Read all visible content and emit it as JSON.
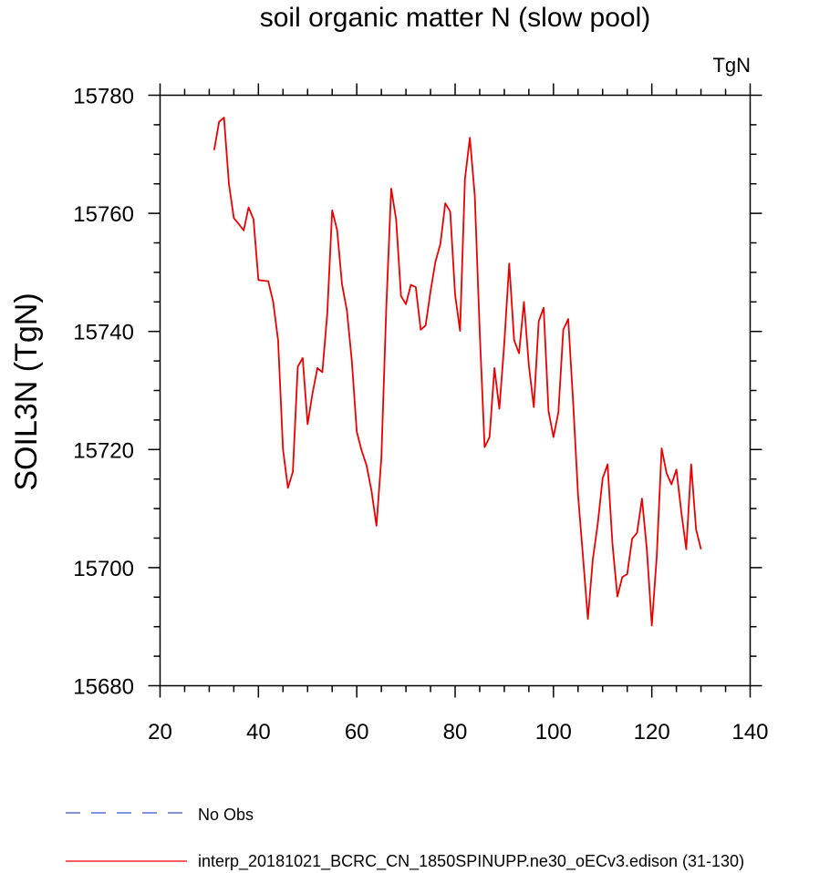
{
  "chart_data": {
    "type": "line",
    "title": "soil organic matter N (slow pool)",
    "units": "TgN",
    "ylabel": "SOIL3N  (TgN)",
    "xlabel": "",
    "xlim": [
      20,
      140
    ],
    "ylim": [
      15680,
      15780
    ],
    "xticks": [
      "20",
      "40",
      "60",
      "80",
      "100",
      "120",
      "140"
    ],
    "yticks": [
      "15680",
      "15700",
      "15720",
      "15740",
      "15760",
      "15780"
    ],
    "legend_position": "bottom-left",
    "series": [
      {
        "name": "No Obs",
        "color": "#3355cc",
        "style": "dashed",
        "x": [],
        "values": []
      },
      {
        "name": "interp_20181021_BCRC_CN_1850SPINUPP.ne30_oECv3.edison (31-130)",
        "color": "#ee0000",
        "style": "solid",
        "x": [
          31,
          32,
          33,
          34,
          35,
          36,
          37,
          38,
          39,
          40,
          41,
          42,
          43,
          44,
          45,
          46,
          47,
          48,
          49,
          50,
          51,
          52,
          53,
          54,
          55,
          56,
          57,
          58,
          59,
          60,
          61,
          62,
          63,
          64,
          65,
          66,
          67,
          68,
          69,
          70,
          71,
          72,
          73,
          74,
          75,
          76,
          77,
          78,
          79,
          80,
          81,
          82,
          83,
          84,
          85,
          86,
          87,
          88,
          89,
          90,
          91,
          92,
          93,
          94,
          95,
          96,
          97,
          98,
          99,
          100,
          101,
          102,
          103,
          104,
          105,
          106,
          107,
          108,
          109,
          110,
          111,
          112,
          113,
          114,
          115,
          116,
          117,
          118,
          119,
          120,
          121,
          122,
          123,
          124,
          125,
          126,
          127,
          128,
          129,
          130
        ],
        "values": [
          15770.7,
          15775.5,
          15776.2,
          15765,
          15759.2,
          15758.2,
          15757.1,
          15761,
          15759,
          15748.7,
          15748.6,
          15748.5,
          15745,
          15738.5,
          15720,
          15713.5,
          15716.2,
          15734,
          15735.5,
          15724.3,
          15729.5,
          15733.8,
          15733.1,
          15743,
          15760.5,
          15757.2,
          15748,
          15743.5,
          15735,
          15723,
          15719.8,
          15717.3,
          15713,
          15707.1,
          15718.5,
          15744,
          15764.2,
          15759,
          15746,
          15744.6,
          15747.9,
          15747.5,
          15740.3,
          15741,
          15746.8,
          15751.8,
          15754.8,
          15761.7,
          15760.3,
          15746.2,
          15740.1,
          15765.8,
          15772.8,
          15763,
          15740,
          15720.4,
          15722.1,
          15733.8,
          15726.9,
          15738,
          15751.5,
          15738.5,
          15736.3,
          15745,
          15734.2,
          15727.2,
          15741.7,
          15744,
          15726.5,
          15722.1,
          15726.3,
          15740.3,
          15742.1,
          15728,
          15712.3,
          15701.9,
          15691.3,
          15701.4,
          15707.4,
          15715.1,
          15717.5,
          15704,
          15695.1,
          15698.4,
          15698.9,
          15704.9,
          15705.9,
          15711.7,
          15703,
          15690.2,
          15701.9,
          15720.2,
          15716,
          15714.1,
          15716.6,
          15709.4,
          15703.1,
          15717.5,
          15706.5,
          15703.1
        ]
      }
    ]
  }
}
